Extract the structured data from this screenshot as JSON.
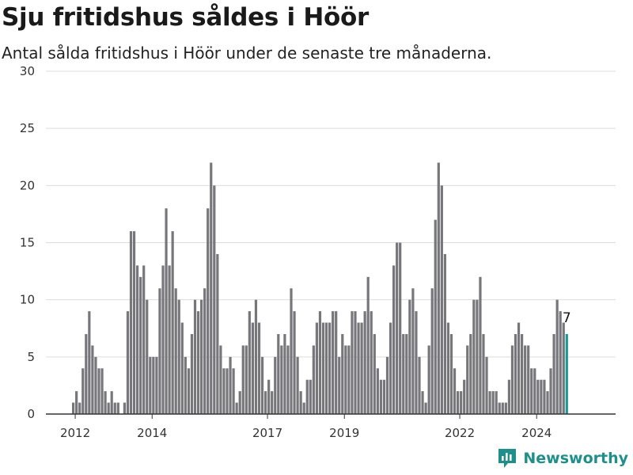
{
  "title": "Sju fritidshus såldes i Höör",
  "subtitle": "Antal sålda fritidshus i Höör under de senaste tre månaderna.",
  "brand": "Newsworthy",
  "colors": {
    "bar": "#77767b",
    "highlight": "#1a9a94",
    "grid": "#dddddd",
    "axis": "#333333",
    "brand": "#1e8f8a"
  },
  "chart_data": {
    "type": "bar",
    "title": "Sju fritidshus såldes i Höör",
    "subtitle": "Antal sålda fritidshus i Höör under de senaste tre månaderna.",
    "xlabel": "",
    "ylabel": "",
    "ylim": [
      0,
      30
    ],
    "yticks": [
      0,
      5,
      10,
      15,
      20,
      25,
      30
    ],
    "xtick_labels": [
      {
        "label": "2012",
        "year": 2012
      },
      {
        "label": "2014",
        "year": 2014
      },
      {
        "label": "2017",
        "year": 2017
      },
      {
        "label": "2019",
        "year": 2019
      },
      {
        "label": "2022",
        "year": 2022
      },
      {
        "label": "2024",
        "year": 2024
      }
    ],
    "grid": true,
    "first_period": "2011-12",
    "highlight_label": "7",
    "values": [
      1,
      2,
      1,
      4,
      7,
      9,
      6,
      5,
      4,
      4,
      2,
      1,
      2,
      1,
      1,
      0,
      1,
      9,
      16,
      16,
      13,
      12,
      13,
      10,
      5,
      5,
      5,
      11,
      13,
      18,
      13,
      16,
      11,
      10,
      8,
      5,
      4,
      7,
      10,
      9,
      10,
      11,
      18,
      22,
      20,
      14,
      6,
      4,
      4,
      5,
      4,
      1,
      2,
      6,
      6,
      9,
      8,
      10,
      8,
      5,
      2,
      3,
      2,
      5,
      7,
      6,
      7,
      6,
      11,
      9,
      5,
      2,
      1,
      3,
      3,
      6,
      8,
      9,
      8,
      8,
      8,
      9,
      9,
      5,
      7,
      6,
      6,
      9,
      9,
      8,
      8,
      9,
      12,
      9,
      7,
      4,
      3,
      3,
      5,
      8,
      13,
      15,
      15,
      7,
      7,
      10,
      11,
      9,
      5,
      2,
      1,
      6,
      11,
      17,
      22,
      20,
      14,
      8,
      7,
      4,
      2,
      2,
      3,
      6,
      7,
      10,
      10,
      12,
      7,
      5,
      2,
      2,
      2,
      1,
      1,
      1,
      3,
      6,
      7,
      8,
      7,
      6,
      6,
      4,
      4,
      3,
      3,
      3,
      2,
      4,
      7,
      10,
      9,
      8,
      7
    ]
  }
}
